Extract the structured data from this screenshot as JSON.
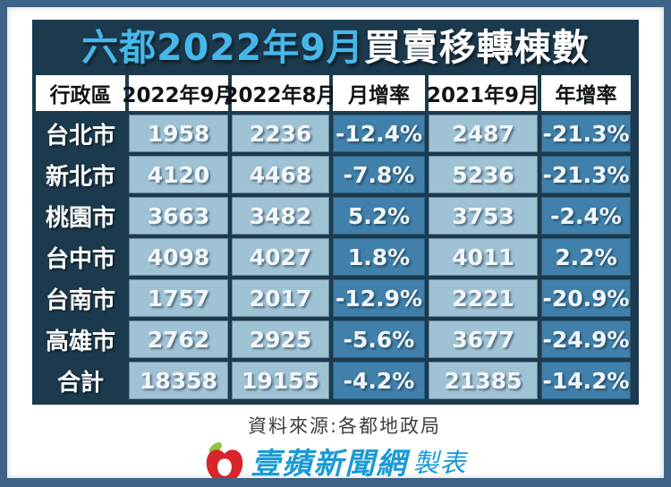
{
  "title": {
    "highlight": "六都2022年9月",
    "rest": "買賣移轉棟數"
  },
  "chart_data": {
    "type": "table",
    "title": "六都2022年9月買賣移轉棟數",
    "columns": [
      "行政區",
      "2022年9月",
      "2022年8月",
      "月增率",
      "2021年9月",
      "年增率"
    ],
    "rows": [
      [
        "台北市",
        "1958",
        "2236",
        "-12.4%",
        "2487",
        "-21.3%"
      ],
      [
        "新北市",
        "4120",
        "4468",
        "-7.8%",
        "5236",
        "-21.3%"
      ],
      [
        "桃園市",
        "3663",
        "3482",
        "5.2%",
        "3753",
        "-2.4%"
      ],
      [
        "台中市",
        "4098",
        "4027",
        "1.8%",
        "4011",
        "2.2%"
      ],
      [
        "台南市",
        "1757",
        "2017",
        "-12.9%",
        "2221",
        "-20.9%"
      ],
      [
        "高雄市",
        "2762",
        "2925",
        "-5.6%",
        "3677",
        "-24.9%"
      ],
      [
        "合計",
        "18358",
        "19155",
        "-4.2%",
        "21385",
        "-14.2%"
      ]
    ]
  },
  "footer": {
    "source": "資料來源:各都地政局",
    "brand": "壹蘋新聞網",
    "brand_suffix": "製表"
  },
  "colors": {
    "frame_border": "#3d6386",
    "card_bg": "#1c3a4d",
    "cell_light": "#9fc2d4",
    "cell_steel": "#4080aa",
    "title_highlight": "#46b7e9",
    "brand_blue": "#199ad5",
    "apple_red": "#d8242a",
    "leaf_green": "#8bc63f"
  }
}
